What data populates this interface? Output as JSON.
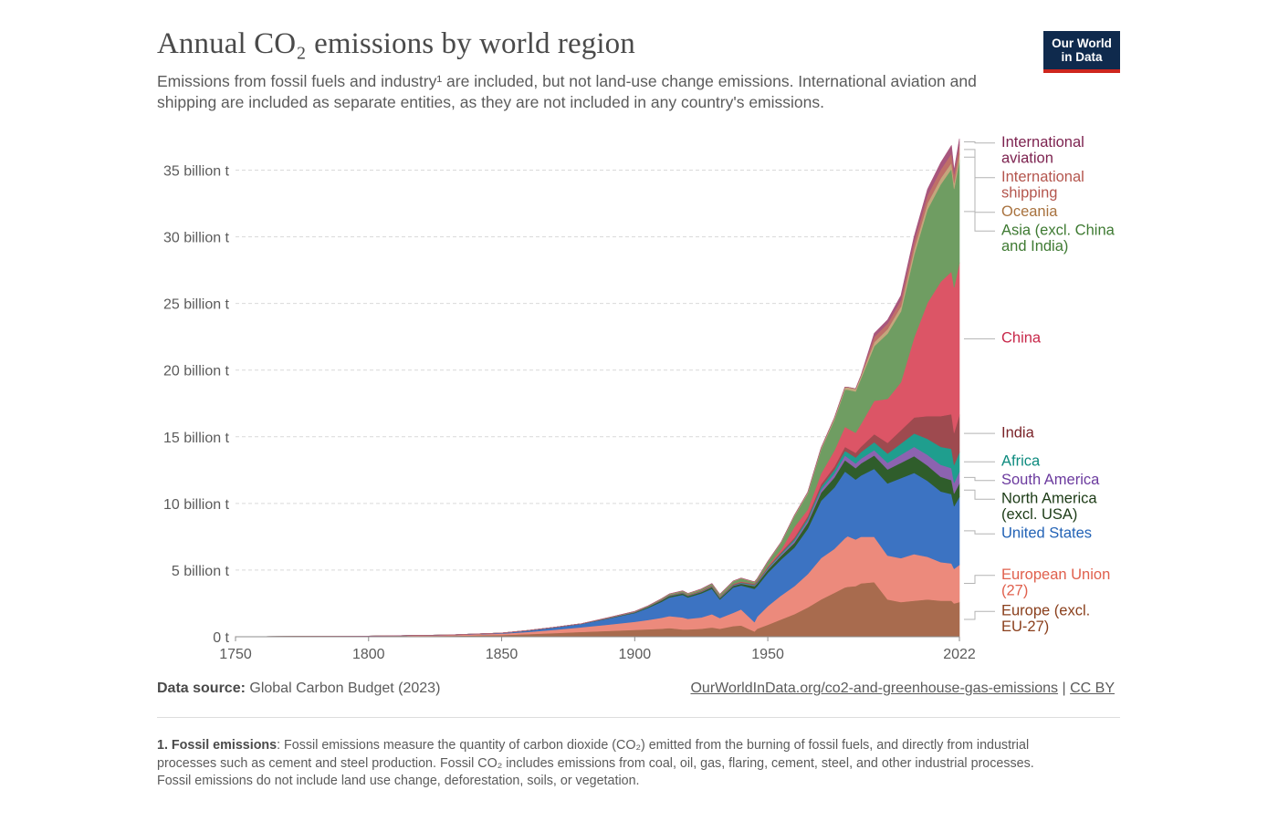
{
  "header": {
    "title": "Annual CO₂ emissions by world region",
    "subtitle": "Emissions from fossil fuels and industry¹ are included, but not land-use change emissions. International aviation and shipping are included as separate entities, as they are not included in any country's emissions.",
    "logo_line1": "Our World",
    "logo_line2": "in Data"
  },
  "chart_data": {
    "type": "area",
    "stacked": true,
    "title": "Annual CO₂ emissions by world region",
    "xlim": [
      1750,
      2022
    ],
    "ylim": [
      0,
      37.5
    ],
    "x_ticks": [
      1750,
      1800,
      1850,
      1900,
      1950,
      2022
    ],
    "y_ticks": [
      0,
      5,
      10,
      15,
      20,
      25,
      30,
      35
    ],
    "y_tick_labels": [
      "0 t",
      "5 billion t",
      "10 billion t",
      "15 billion t",
      "20 billion t",
      "25 billion t",
      "30 billion t",
      "35 billion t"
    ],
    "units": "billion t",
    "grid": "horizontal dashed",
    "legend": "right, labels at series end",
    "x": [
      1750,
      1800,
      1830,
      1850,
      1860,
      1870,
      1880,
      1890,
      1900,
      1905,
      1910,
      1913,
      1918,
      1920,
      1925,
      1929,
      1932,
      1937,
      1940,
      1945,
      1946,
      1950,
      1955,
      1960,
      1965,
      1970,
      1975,
      1979,
      1980,
      1983,
      1985,
      1990,
      1995,
      2000,
      2005,
      2010,
      2015,
      2019,
      2020,
      2022
    ],
    "series": [
      {
        "name": "Europe (excl. EU-27)",
        "color": "#a86b4e",
        "values": [
          0.009,
          0.03,
          0.07,
          0.13,
          0.2,
          0.28,
          0.36,
          0.44,
          0.52,
          0.56,
          0.6,
          0.65,
          0.55,
          0.55,
          0.6,
          0.7,
          0.6,
          0.8,
          0.85,
          0.4,
          0.6,
          0.9,
          1.3,
          1.7,
          2.2,
          2.8,
          3.3,
          3.7,
          3.75,
          3.8,
          4.0,
          4.1,
          2.8,
          2.6,
          2.7,
          2.8,
          2.7,
          2.7,
          2.5,
          2.6
        ]
      },
      {
        "name": "European Union (27)",
        "color": "#ec8a7c",
        "values": [
          0,
          0.02,
          0.05,
          0.1,
          0.16,
          0.25,
          0.35,
          0.47,
          0.6,
          0.7,
          0.82,
          0.9,
          0.9,
          0.8,
          0.85,
          1.0,
          0.8,
          1.0,
          1.2,
          0.7,
          0.9,
          1.4,
          1.8,
          2.1,
          2.5,
          3.1,
          3.3,
          3.7,
          3.8,
          3.5,
          3.5,
          3.4,
          3.3,
          3.3,
          3.5,
          3.2,
          2.9,
          2.8,
          2.6,
          2.8
        ]
      },
      {
        "name": "United States",
        "color": "#3c73c2",
        "values": [
          0,
          0.0,
          0.01,
          0.05,
          0.1,
          0.17,
          0.25,
          0.45,
          0.66,
          0.9,
          1.2,
          1.4,
          1.7,
          1.6,
          1.8,
          1.9,
          1.4,
          1.9,
          1.8,
          2.5,
          2.3,
          2.5,
          2.7,
          2.9,
          3.4,
          4.3,
          4.6,
          5.0,
          4.7,
          4.5,
          4.6,
          5.1,
          5.4,
          6.0,
          6.1,
          5.7,
          5.3,
          5.2,
          4.7,
          5.1
        ]
      },
      {
        "name": "North America (excl. USA)",
        "color": "#2f5d2b",
        "values": [
          0,
          0,
          0.0,
          0.0,
          0.01,
          0.01,
          0.02,
          0.03,
          0.05,
          0.07,
          0.09,
          0.1,
          0.1,
          0.1,
          0.1,
          0.12,
          0.1,
          0.12,
          0.13,
          0.2,
          0.2,
          0.22,
          0.28,
          0.35,
          0.45,
          0.6,
          0.75,
          0.85,
          0.85,
          0.85,
          0.9,
          1.0,
          1.05,
          1.15,
          1.25,
          1.15,
          1.1,
          1.05,
          0.95,
          1.0
        ]
      },
      {
        "name": "South America",
        "color": "#8c63b0",
        "values": [
          0,
          0,
          0,
          0,
          0,
          0.0,
          0.0,
          0.01,
          0.01,
          0.01,
          0.02,
          0.02,
          0.02,
          0.02,
          0.03,
          0.03,
          0.03,
          0.04,
          0.04,
          0.05,
          0.05,
          0.08,
          0.1,
          0.15,
          0.18,
          0.24,
          0.3,
          0.35,
          0.35,
          0.35,
          0.36,
          0.4,
          0.5,
          0.6,
          0.7,
          0.8,
          0.9,
          0.9,
          0.8,
          0.9
        ]
      },
      {
        "name": "Africa",
        "color": "#1f9e8e",
        "values": [
          0,
          0,
          0,
          0,
          0,
          0,
          0,
          0.0,
          0.01,
          0.01,
          0.01,
          0.02,
          0.02,
          0.02,
          0.02,
          0.03,
          0.03,
          0.03,
          0.04,
          0.05,
          0.05,
          0.07,
          0.09,
          0.12,
          0.15,
          0.2,
          0.27,
          0.35,
          0.38,
          0.45,
          0.5,
          0.6,
          0.7,
          0.85,
          1.0,
          1.2,
          1.35,
          1.45,
          1.35,
          1.45
        ]
      },
      {
        "name": "India",
        "color": "#9e4a4f",
        "values": [
          0,
          0,
          0,
          0,
          0,
          0,
          0.0,
          0.01,
          0.02,
          0.02,
          0.03,
          0.03,
          0.03,
          0.03,
          0.04,
          0.04,
          0.04,
          0.05,
          0.05,
          0.06,
          0.06,
          0.07,
          0.08,
          0.12,
          0.16,
          0.2,
          0.25,
          0.3,
          0.3,
          0.35,
          0.4,
          0.6,
          0.8,
          1.0,
          1.2,
          1.7,
          2.3,
          2.6,
          2.4,
          2.8
        ]
      },
      {
        "name": "China",
        "color": "#dc5566",
        "values": [
          0,
          0,
          0,
          0,
          0,
          0,
          0,
          0,
          0.0,
          0.0,
          0.01,
          0.01,
          0.02,
          0.02,
          0.02,
          0.03,
          0.03,
          0.03,
          0.04,
          0.03,
          0.04,
          0.08,
          0.2,
          0.8,
          0.5,
          0.8,
          1.2,
          1.5,
          1.5,
          1.5,
          1.7,
          2.5,
          3.3,
          3.6,
          6.0,
          8.5,
          10.1,
          10.7,
          10.9,
          11.4
        ]
      },
      {
        "name": "Asia (excl. China and India)",
        "color": "#6f9d62",
        "values": [
          0,
          0,
          0,
          0,
          0,
          0,
          0,
          0.01,
          0.02,
          0.03,
          0.05,
          0.06,
          0.08,
          0.09,
          0.1,
          0.12,
          0.13,
          0.18,
          0.22,
          0.1,
          0.12,
          0.3,
          0.5,
          0.8,
          1.2,
          1.8,
          2.3,
          2.8,
          2.9,
          3.1,
          3.4,
          4.1,
          4.9,
          5.3,
          6.2,
          7.0,
          7.3,
          7.7,
          7.4,
          7.7
        ]
      },
      {
        "name": "Oceania",
        "color": "#c5a67c",
        "values": [
          0,
          0,
          0,
          0,
          0,
          0.0,
          0.0,
          0.01,
          0.01,
          0.01,
          0.02,
          0.02,
          0.02,
          0.02,
          0.02,
          0.02,
          0.02,
          0.03,
          0.03,
          0.03,
          0.03,
          0.04,
          0.05,
          0.07,
          0.09,
          0.12,
          0.15,
          0.18,
          0.19,
          0.2,
          0.22,
          0.3,
          0.33,
          0.38,
          0.43,
          0.46,
          0.46,
          0.46,
          0.44,
          0.45
        ]
      },
      {
        "name": "International shipping",
        "color": "#bf6f68",
        "values": [
          0,
          0,
          0,
          0,
          0,
          0,
          0,
          0,
          0,
          0,
          0,
          0,
          0,
          0,
          0,
          0,
          0,
          0,
          0,
          0,
          0,
          0,
          0,
          0,
          0,
          0,
          0,
          0,
          0,
          0,
          0,
          0.4,
          0.42,
          0.48,
          0.55,
          0.6,
          0.65,
          0.7,
          0.65,
          0.7
        ]
      },
      {
        "name": "International aviation",
        "color": "#a8567d",
        "values": [
          0,
          0,
          0,
          0,
          0,
          0,
          0,
          0,
          0,
          0,
          0,
          0,
          0,
          0,
          0,
          0,
          0,
          0,
          0,
          0,
          0,
          0,
          0,
          0,
          0,
          0,
          0,
          0,
          0,
          0,
          0,
          0.25,
          0.27,
          0.33,
          0.4,
          0.45,
          0.52,
          0.6,
          0.3,
          0.45
        ]
      }
    ],
    "legend_labels": [
      {
        "series": "International aviation",
        "lines": [
          "International",
          "aviation"
        ],
        "color": "#7d2350"
      },
      {
        "series": "International shipping",
        "lines": [
          "International",
          "shipping"
        ],
        "color": "#b4564e"
      },
      {
        "series": "Oceania",
        "lines": [
          "Oceania"
        ],
        "color": "#a8723e"
      },
      {
        "series": "Asia (excl. China and India)",
        "lines": [
          "Asia (excl. China",
          "and India)"
        ],
        "color": "#3e7a32"
      },
      {
        "series": "China",
        "lines": [
          "China"
        ],
        "color": "#c8284a"
      },
      {
        "series": "India",
        "lines": [
          "India"
        ],
        "color": "#7a2328"
      },
      {
        "series": "Africa",
        "lines": [
          "Africa"
        ],
        "color": "#0e8b7f"
      },
      {
        "series": "South America",
        "lines": [
          "South America"
        ],
        "color": "#6b3a9e"
      },
      {
        "series": "North America (excl. USA)",
        "lines": [
          "North America",
          "(excl. USA)"
        ],
        "color": "#1c3b16"
      },
      {
        "series": "United States",
        "lines": [
          "United States"
        ],
        "color": "#2363b6"
      },
      {
        "series": "European Union (27)",
        "lines": [
          "European Union",
          "(27)"
        ],
        "color": "#e0604d"
      },
      {
        "series": "Europe (excl. EU-27)",
        "lines": [
          "Europe (excl.",
          "EU-27)"
        ],
        "color": "#8a3f1c"
      }
    ]
  },
  "footer": {
    "source_label": "Data source:",
    "source_text": " Global Carbon Budget (2023)",
    "url": "OurWorldInData.org/co2-and-greenhouse-gas-emissions",
    "license": "CC BY",
    "separator": " | ",
    "footnote_label": "1. Fossil emissions",
    "footnote_text": ": Fossil emissions measure the quantity of carbon dioxide (CO₂) emitted from the burning of fossil fuels, and directly from industrial processes such as cement and steel production. Fossil CO₂ includes emissions from coal, oil, gas, flaring, cement, steel, and other industrial processes. Fossil emissions do not include land use change, deforestation, soils, or vegetation."
  }
}
